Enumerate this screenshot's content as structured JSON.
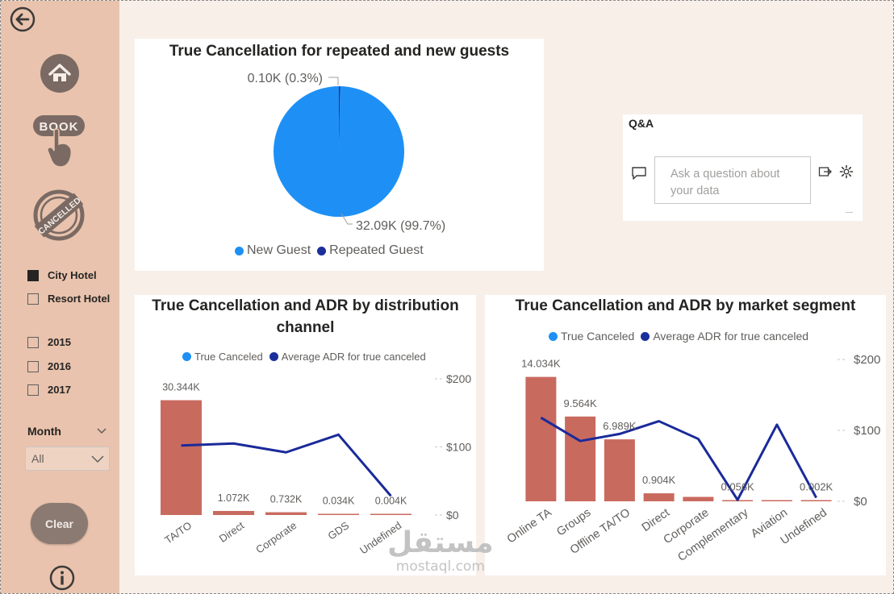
{
  "sidebar": {
    "hotels": [
      {
        "label": "City Hotel",
        "checked": true
      },
      {
        "label": "Resort Hotel",
        "checked": false
      }
    ],
    "years": [
      {
        "label": "2015",
        "checked": false
      },
      {
        "label": "2016",
        "checked": false
      },
      {
        "label": "2017",
        "checked": false
      }
    ],
    "month_label": "Month",
    "month_value": "All",
    "clear_label": "Clear",
    "book_label": "BOOK",
    "cancelled_label": "CANCELLED"
  },
  "pie_chart": {
    "title": "True Cancellation for repeated and new guests",
    "labels": [
      "0.10K (0.3%)",
      "32.09K (99.7%)"
    ],
    "legend": [
      "New Guest",
      "Repeated Guest"
    ]
  },
  "qa": {
    "title": "Q&A",
    "placeholder": "Ask a question about your data"
  },
  "dist_chart": {
    "title_line1": "True Cancellation and ADR by distribution",
    "title_line2": "channel",
    "legend": [
      "True Canceled",
      "Average ADR for true canceled"
    ],
    "y2_ticks": [
      "$200",
      "$100",
      "$0"
    ]
  },
  "market_chart": {
    "title": "True Cancellation and ADR by market segment",
    "legend": [
      "True Canceled",
      "Average ADR for true canceled"
    ],
    "y2_ticks": [
      "$200",
      "$100",
      "$0"
    ]
  },
  "colors": {
    "sidebar": "#e9c3ad",
    "new_guest": "#1e90f5",
    "repeated_guest": "#1a2f9c",
    "bar": "#c96a5f",
    "line": "#1a2a9a"
  },
  "watermark": {
    "arabic": "مستقل",
    "latin": "mostaql.com"
  },
  "chart_data": [
    {
      "type": "pie",
      "title": "True Cancellation for repeated and new guests",
      "categories": [
        "New Guest",
        "Repeated Guest"
      ],
      "values": [
        32.09,
        0.1
      ],
      "unit": "K",
      "data_labels": [
        "32.09K (99.7%)",
        "0.10K (0.3%)"
      ]
    },
    {
      "type": "bar",
      "title": "True Cancellation and ADR by distribution channel",
      "categories": [
        "TA/TO",
        "Direct",
        "Corporate",
        "GDS",
        "Undefined"
      ],
      "series": [
        {
          "name": "True Canceled",
          "type": "bar",
          "values": [
            30.344,
            1.072,
            0.732,
            0.034,
            0.004
          ],
          "unit": "K",
          "labels": [
            "30.344K",
            "1.072K",
            "0.732K",
            "0.034K",
            "0.004K"
          ]
        },
        {
          "name": "Average ADR for true canceled",
          "type": "line",
          "axis": "secondary",
          "values": [
            102,
            105,
            92,
            118,
            28
          ]
        }
      ],
      "y_lim": [
        0,
        36
      ],
      "y2_lim": [
        0,
        200
      ],
      "y2_ticks": [
        "$200",
        "$100",
        "$0"
      ]
    },
    {
      "type": "bar",
      "title": "True Cancellation and ADR by market segment",
      "categories": [
        "Online TA",
        "Groups",
        "Offline TA/TO",
        "Direct",
        "Corporate",
        "Complementary",
        "Aviation",
        "Undefined"
      ],
      "series": [
        {
          "name": "True Canceled",
          "type": "bar",
          "values": [
            14.034,
            9.564,
            6.989,
            0.904,
            0.5,
            0.056,
            0.1,
            0.002
          ],
          "unit": "K",
          "labels": [
            "14.034K",
            "9.564K",
            "6.989K",
            "0.904K",
            "",
            "0.056K",
            "",
            "0.002K"
          ]
        },
        {
          "name": "Average ADR for true canceled",
          "type": "line",
          "axis": "secondary",
          "values": [
            118,
            85,
            95,
            113,
            88,
            2,
            108,
            5
          ]
        }
      ],
      "y_lim": [
        0,
        16
      ],
      "y2_lim": [
        0,
        200
      ],
      "y2_ticks": [
        "$200",
        "$100",
        "$0"
      ]
    }
  ]
}
